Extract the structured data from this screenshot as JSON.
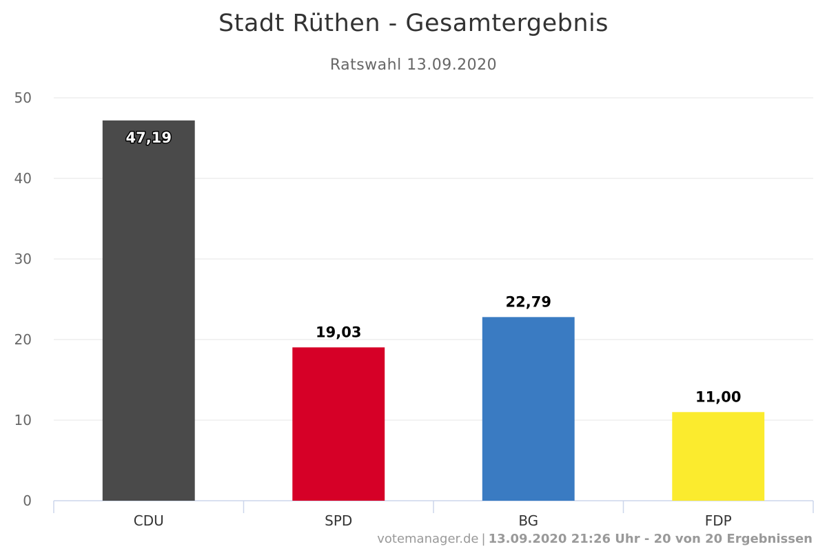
{
  "chart_data": {
    "type": "bar",
    "title": "Stadt Rüthen - Gesamtergebnis",
    "subtitle": "Ratswahl 13.09.2020",
    "categories": [
      "CDU",
      "SPD",
      "BG",
      "FDP"
    ],
    "values": [
      47.19,
      19.03,
      22.79,
      11.0
    ],
    "data_labels": [
      "47,19",
      "19,03",
      "22,79",
      "11,00"
    ],
    "colors": [
      "#4a4a4a",
      "#d60027",
      "#3a7bc2",
      "#fbeb2e"
    ],
    "ylim": [
      0,
      50
    ],
    "yticks": [
      0,
      10,
      20,
      30,
      40,
      50
    ],
    "grid": true,
    "xlabel": "",
    "ylabel": ""
  },
  "footer": {
    "source": "votemanager.de",
    "separator": "|",
    "details": "13.09.2020 21:26 Uhr - 20 von 20 Ergebnissen"
  }
}
